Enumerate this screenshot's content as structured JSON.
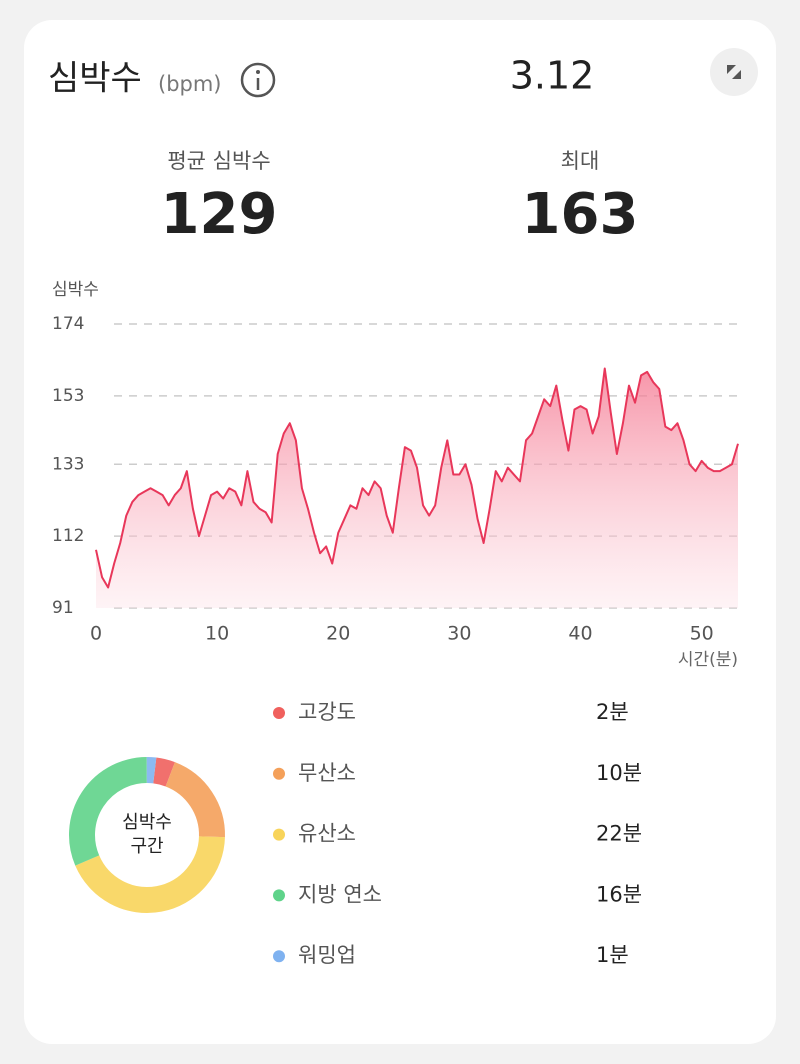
{
  "header": {
    "title": "심박수",
    "unit": "(bpm)",
    "date": "3.12"
  },
  "stats": [
    {
      "label": "평균 심박수",
      "value": 129
    },
    {
      "label": "최대",
      "value": 163
    }
  ],
  "chart_data": {
    "type": "line",
    "y_label": "심박수",
    "x_label": "시간(분)",
    "x": [
      0,
      0.5,
      1,
      1.5,
      2,
      2.5,
      3,
      3.5,
      4,
      4.5,
      5,
      5.5,
      6,
      6.5,
      7,
      7.5,
      8,
      8.5,
      9,
      9.5,
      10,
      10.5,
      11,
      11.5,
      12,
      12.5,
      13,
      13.5,
      14,
      14.5,
      15,
      15.5,
      16,
      16.5,
      17,
      17.5,
      18,
      18.5,
      19,
      19.5,
      20,
      20.5,
      21,
      21.5,
      22,
      22.5,
      23,
      23.5,
      24,
      24.5,
      25,
      25.5,
      26,
      26.5,
      27,
      27.5,
      28,
      28.5,
      29,
      29.5,
      30,
      30.5,
      31,
      31.5,
      32,
      32.5,
      33,
      33.5,
      34,
      34.5,
      35,
      35.5,
      36,
      36.5,
      37,
      37.5,
      38,
      38.5,
      39,
      39.5,
      40,
      40.5,
      41,
      41.5,
      42,
      42.5,
      43,
      43.5,
      44,
      44.5,
      45,
      45.5,
      46,
      46.5,
      47,
      47.5,
      48,
      48.5,
      49,
      49.5,
      50,
      50.5,
      51,
      51.5,
      52,
      52.5,
      53
    ],
    "series": [
      {
        "color": "#e8375a",
        "values": [
          108,
          100,
          97,
          104,
          110,
          118,
          122,
          124,
          125,
          126,
          125,
          124,
          121,
          124,
          126,
          131,
          120,
          112,
          118,
          124,
          125,
          123,
          126,
          125,
          121,
          131,
          122,
          120,
          119,
          116,
          136,
          142,
          145,
          140,
          126,
          120,
          113,
          107,
          109,
          104,
          113,
          117,
          121,
          120,
          126,
          124,
          128,
          126,
          118,
          113,
          126,
          138,
          137,
          132,
          121,
          118,
          121,
          132,
          140,
          130,
          130,
          133,
          127,
          117,
          110,
          120,
          131,
          128,
          132,
          130,
          128,
          140,
          142,
          147,
          152,
          150,
          156,
          146,
          137,
          149,
          150,
          149,
          142,
          147,
          161,
          148,
          136,
          145,
          156,
          151,
          159,
          160,
          157,
          155,
          144,
          143,
          145,
          140,
          133,
          131,
          134,
          132,
          131,
          131,
          132,
          133,
          139
        ]
      }
    ],
    "xlim": [
      0,
      53
    ],
    "ylim": [
      91,
      174
    ],
    "xticks": [
      0,
      10,
      20,
      30,
      40,
      50
    ],
    "yticks": [
      91,
      112,
      133,
      153,
      174
    ],
    "grid": true
  },
  "zones": {
    "type": "donut",
    "center_label": [
      "심박수",
      "구간"
    ],
    "categories": [
      "고강도",
      "무산소",
      "유산소",
      "지방 연소",
      "워밍업"
    ],
    "values": [
      2,
      10,
      22,
      16,
      1
    ],
    "value_labels": [
      "2분",
      "10분",
      "22분",
      "16분",
      "1분"
    ],
    "colors": [
      "#f0605d",
      "#f4a05a",
      "#f8d45a",
      "#5fd38a",
      "#7fb2f0"
    ]
  }
}
